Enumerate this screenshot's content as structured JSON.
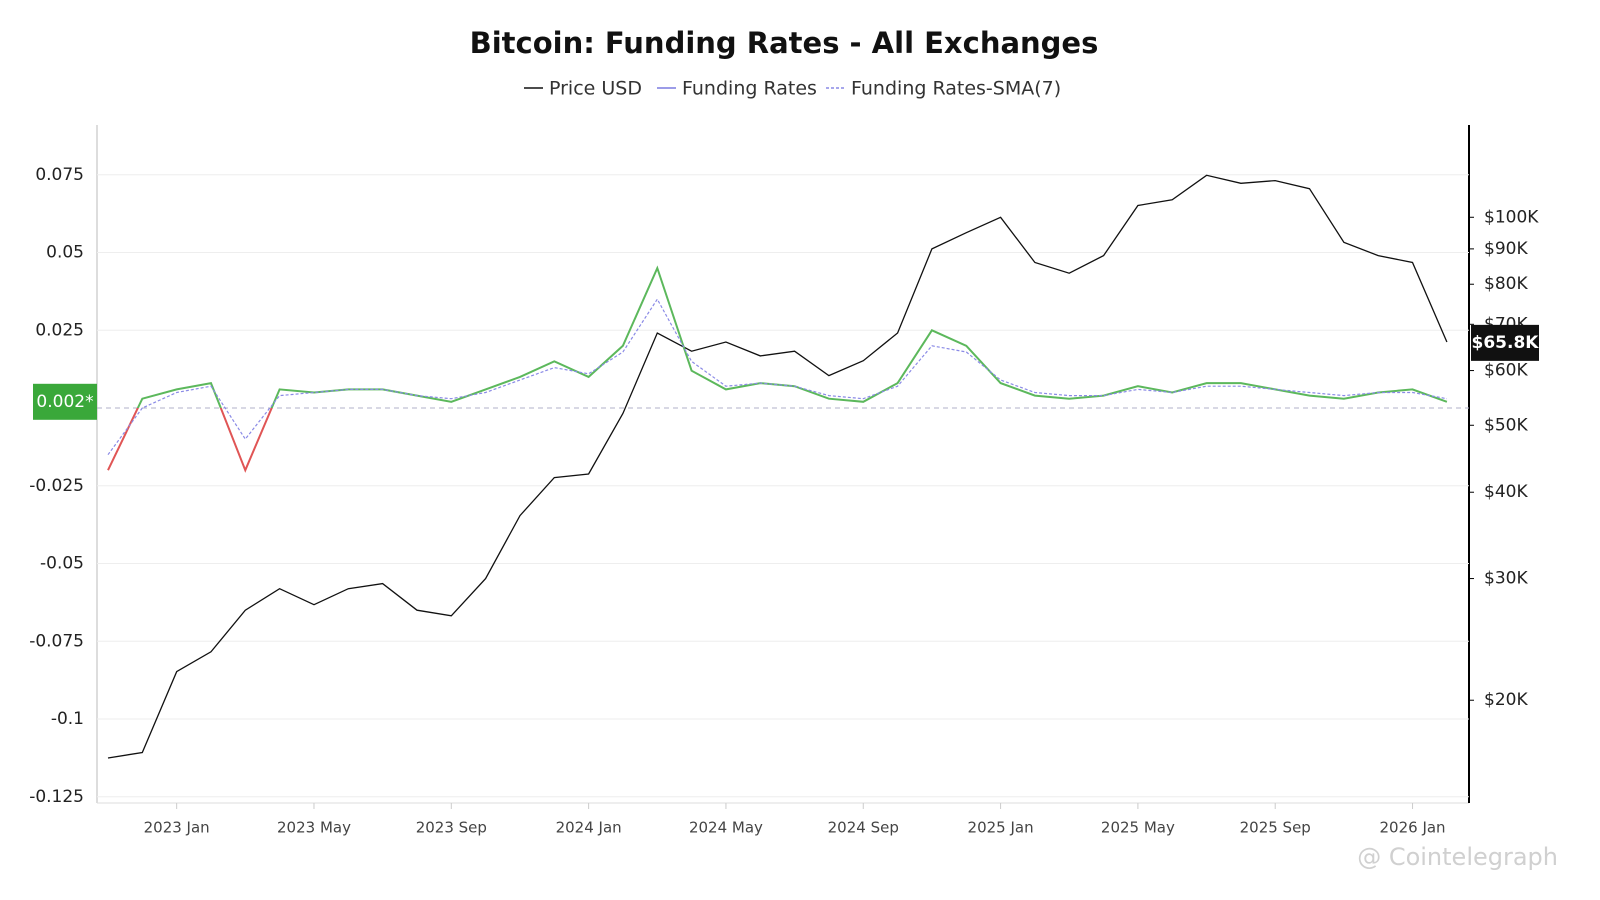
{
  "chart_data": {
    "type": "line",
    "title": "Bitcoin: Funding Rates - All Exchanges",
    "categories": [
      "2022 Nov",
      "2022 Dec",
      "2023 Jan",
      "2023 Feb",
      "2023 Mar",
      "2023 Apr",
      "2023 May",
      "2023 Jun",
      "2023 Jul",
      "2023 Aug",
      "2023 Sep",
      "2023 Oct",
      "2023 Nov",
      "2023 Dec",
      "2024 Jan",
      "2024 Feb",
      "2024 Mar",
      "2024 Apr",
      "2024 May",
      "2024 Jun",
      "2024 Jul",
      "2024 Aug",
      "2024 Sep",
      "2024 Oct",
      "2024 Nov",
      "2024 Dec",
      "2025 Jan",
      "2025 Feb",
      "2025 Mar",
      "2025 Apr",
      "2025 May",
      "2025 Jun",
      "2025 Jul",
      "2025 Aug",
      "2025 Sep",
      "2025 Oct",
      "2025 Nov",
      "2025 Dec",
      "2026 Jan",
      "2026 Feb"
    ],
    "xticks": [
      "2023 Jan",
      "2023 May",
      "2023 Sep",
      "2024 Jan",
      "2024 May",
      "2024 Sep",
      "2025 Jan",
      "2025 May",
      "2025 Sep",
      "2026 Jan"
    ],
    "series": [
      {
        "name": "Price USD",
        "color": "#111111",
        "axis": "y2",
        "values": [
          16500,
          16800,
          22000,
          23500,
          27000,
          29000,
          27500,
          29000,
          29500,
          27000,
          26500,
          30000,
          37000,
          42000,
          42500,
          52000,
          68000,
          64000,
          66000,
          63000,
          64000,
          59000,
          62000,
          68000,
          90000,
          95000,
          100000,
          86000,
          83000,
          88000,
          104000,
          106000,
          115000,
          112000,
          113000,
          110000,
          92000,
          88000,
          86000,
          66000
        ]
      },
      {
        "name": "Funding Rates",
        "color": "#7b7be0",
        "positive_color": "#5cb85c",
        "negative_color": "#e05555",
        "values": [
          -0.02,
          0.003,
          0.006,
          0.008,
          -0.02,
          0.006,
          0.005,
          0.006,
          0.006,
          0.004,
          0.002,
          0.006,
          0.01,
          0.015,
          0.01,
          0.02,
          0.045,
          0.012,
          0.006,
          0.008,
          0.007,
          0.003,
          0.002,
          0.008,
          0.025,
          0.02,
          0.008,
          0.004,
          0.003,
          0.004,
          0.007,
          0.005,
          0.008,
          0.008,
          0.006,
          0.004,
          0.003,
          0.005,
          0.006,
          0.002
        ]
      },
      {
        "name": "Funding Rates-SMA(7)",
        "color": "#8a8ae6",
        "dashed": true,
        "values": [
          -0.015,
          0.0,
          0.005,
          0.007,
          -0.01,
          0.004,
          0.005,
          0.006,
          0.006,
          0.004,
          0.003,
          0.005,
          0.009,
          0.013,
          0.011,
          0.018,
          0.035,
          0.015,
          0.007,
          0.008,
          0.007,
          0.004,
          0.003,
          0.007,
          0.02,
          0.018,
          0.009,
          0.005,
          0.004,
          0.004,
          0.006,
          0.005,
          0.007,
          0.007,
          0.006,
          0.005,
          0.004,
          0.005,
          0.005,
          0.003
        ]
      }
    ],
    "ylim": [
      -0.127,
      0.091
    ],
    "yticks": [
      0.075,
      0.05,
      0.025,
      -0.025,
      -0.05,
      -0.075,
      -0.1,
      -0.125
    ],
    "y2lim": [
      14200,
      136000
    ],
    "y2_log": true,
    "y2ticks": [
      {
        "value": 20000,
        "label": "$20K"
      },
      {
        "value": 30000,
        "label": "$30K"
      },
      {
        "value": 40000,
        "label": "$40K"
      },
      {
        "value": 50000,
        "label": "$50K"
      },
      {
        "value": 60000,
        "label": "$60K"
      },
      {
        "value": 70000,
        "label": "$70K"
      },
      {
        "value": 80000,
        "label": "$80K"
      },
      {
        "value": 90000,
        "label": "$90K"
      },
      {
        "value": 100000,
        "label": "$100K"
      }
    ],
    "grid": true,
    "funding_label": {
      "value": 0.002,
      "label": "0.002*"
    },
    "price_label": {
      "value": 65800,
      "label": "$65.8K"
    },
    "watermark": "@ Cointelegraph"
  }
}
